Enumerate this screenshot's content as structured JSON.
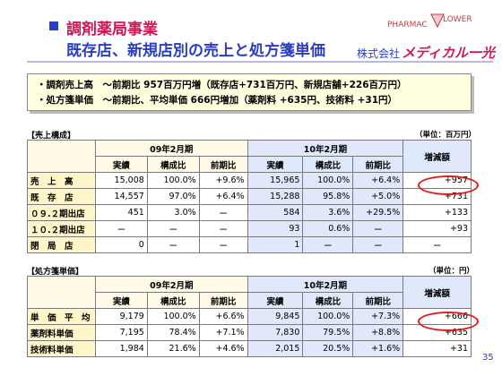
{
  "header": {
    "title1": "調剤薬局事業",
    "title2": "既存店、新規店別の売上と処方箋単価",
    "company_prefix": "株式会社",
    "company_brand": "メディカル一光",
    "logo_text_left": "PHARMAC",
    "logo_text_right": "LOWER"
  },
  "summary": {
    "line1": "・調剤売上高　～前期比 957百万円増（既存店+731百万円、新規店舗+226百万円）",
    "line2": "・処方箋単価　～前期比、平均単価 666円増加（薬剤料 +635円、技術料 +31円）"
  },
  "sales_table": {
    "section_label": "【売上構成】",
    "unit_label": "（単位：百万円）",
    "period_prev": "09年2月期",
    "period_curr": "10年2月期",
    "col_actual": "実績",
    "col_ratio": "構成比",
    "col_yoy": "前期比",
    "col_change": "増減額",
    "rows": [
      {
        "label": "売　上　高",
        "p_actual": "15,008",
        "p_ratio": "100.0%",
        "p_yoy": "+9.6%",
        "c_actual": "15,965",
        "c_ratio": "100.0%",
        "c_yoy": "+6.4%",
        "change": "+957"
      },
      {
        "label": "既　存　店",
        "p_actual": "14,557",
        "p_ratio": "97.0%",
        "p_yoy": "+6.4%",
        "c_actual": "15,288",
        "c_ratio": "95.8%",
        "c_yoy": "+5.0%",
        "change": "+731"
      },
      {
        "label": "０９.２期出店",
        "p_actual": "451",
        "p_ratio": "3.0%",
        "p_yoy": "ー",
        "c_actual": "584",
        "c_ratio": "3.6%",
        "c_yoy": "+29.5%",
        "change": "+133"
      },
      {
        "label": "１０.２期出店",
        "p_actual": "ー",
        "p_ratio": "ー",
        "p_yoy": "ー",
        "c_actual": "93",
        "c_ratio": "0.6%",
        "c_yoy": "ー",
        "change": "+93"
      },
      {
        "label": "閉　局　店",
        "p_actual": "0",
        "p_ratio": "ー",
        "p_yoy": "ー",
        "c_actual": "1",
        "c_ratio": "ー",
        "c_yoy": "ー",
        "change": "ー"
      }
    ]
  },
  "rx_table": {
    "section_label": "【処方箋単価】",
    "unit_label": "（単位：円）",
    "period_prev": "09年2月期",
    "period_curr": "10年2月期",
    "col_actual": "実績",
    "col_ratio": "構成比",
    "col_yoy": "前期比",
    "col_change": "増減額",
    "rows": [
      {
        "label": "単　価　平　均",
        "p_actual": "9,179",
        "p_ratio": "100.0%",
        "p_yoy": "+6.6%",
        "c_actual": "9,845",
        "c_ratio": "100.0%",
        "c_yoy": "+7.3%",
        "change": "+666"
      },
      {
        "label": "薬剤料単価",
        "p_actual": "7,195",
        "p_ratio": "78.4%",
        "p_yoy": "+7.1%",
        "c_actual": "7,830",
        "c_ratio": "79.5%",
        "c_yoy": "+8.8%",
        "change": "+635"
      },
      {
        "label": "技術料単価",
        "p_actual": "1,984",
        "p_ratio": "21.6%",
        "p_yoy": "+4.6%",
        "c_actual": "2,015",
        "c_ratio": "20.5%",
        "c_yoy": "+1.6%",
        "change": "+31"
      }
    ]
  },
  "page_number": "35",
  "colors": {
    "title_red": "#d4145a",
    "title_blue": "#2a3fbf",
    "highlight_circle": "#e11b1b",
    "row_label_bg": "#fff5c8",
    "curr_period_bg": "#dfe9fb"
  }
}
